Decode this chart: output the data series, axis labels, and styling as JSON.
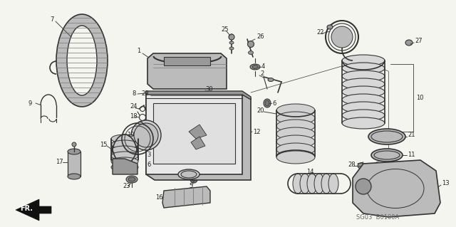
{
  "bg_color": "#f5f5f0",
  "line_color": "#333333",
  "text_color": "#222222",
  "watermark": "SG03  B0100A",
  "fr_label": "FR.",
  "figsize": [
    6.4,
    3.19
  ],
  "dpi": 100
}
